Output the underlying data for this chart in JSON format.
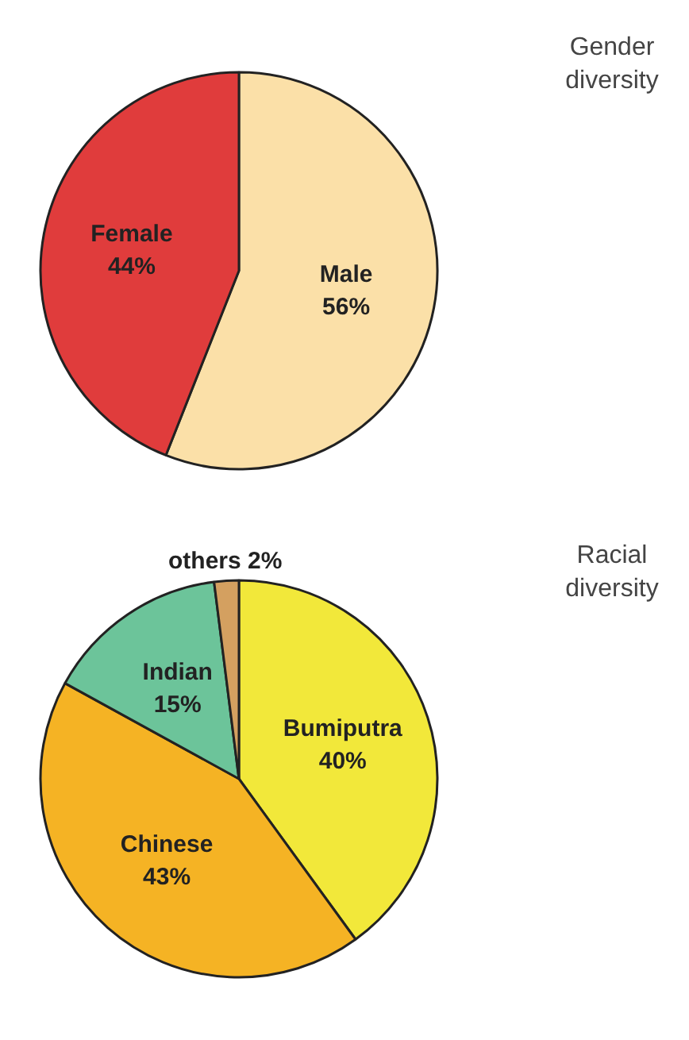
{
  "chart_data": [
    {
      "type": "pie",
      "title": "Gender diversity",
      "categories": [
        "Male",
        "Female"
      ],
      "values": [
        56,
        44
      ],
      "colors": [
        "#fbe0a8",
        "#e03c3c"
      ],
      "value_labels": [
        "56%",
        "44%"
      ]
    },
    {
      "type": "pie",
      "title": "Racial diversity",
      "categories": [
        "Bumiputra",
        "Chinese",
        "Indian",
        "others"
      ],
      "values": [
        40,
        43,
        15,
        2
      ],
      "colors": [
        "#f2e83a",
        "#f5b324",
        "#6cc49a",
        "#d4a060"
      ],
      "value_labels": [
        "40%",
        "43%",
        "15%",
        "2%"
      ]
    }
  ]
}
